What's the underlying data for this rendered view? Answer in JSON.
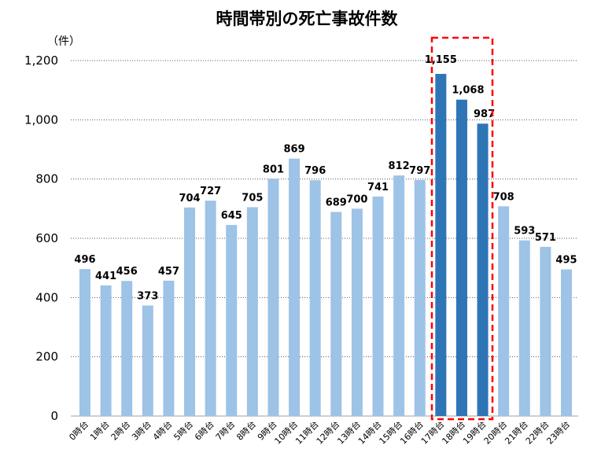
{
  "chart_data": {
    "type": "bar",
    "title": "時間帯別の死亡事故件数",
    "ylabel": "（件）",
    "xlabel": "",
    "ylim": [
      0,
      1200
    ],
    "yticks": [
      0,
      200,
      400,
      600,
      800,
      1000,
      1200
    ],
    "ytick_labels": [
      "0",
      "200",
      "400",
      "600",
      "800",
      "1,000",
      "1,200"
    ],
    "grid": "horizontal dotted",
    "categories": [
      "0時台",
      "1時台",
      "2時台",
      "3時台",
      "4時台",
      "5時台",
      "6時台",
      "7時台",
      "8時台",
      "9時台",
      "10時台",
      "11時台",
      "12時台",
      "13時台",
      "14時台",
      "15時台",
      "16時台",
      "17時台",
      "18時台",
      "19時台",
      "20時台",
      "21時台",
      "22時台",
      "23時台"
    ],
    "values": [
      496,
      441,
      456,
      373,
      457,
      704,
      727,
      645,
      705,
      801,
      869,
      796,
      689,
      700,
      741,
      812,
      797,
      1155,
      1068,
      987,
      708,
      593,
      571,
      495
    ],
    "value_labels": [
      "496",
      "441",
      "456",
      "373",
      "457",
      "704",
      "727",
      "645",
      "705",
      "801",
      "869",
      "796",
      "689",
      "700",
      "741",
      "812",
      "797",
      "1,155",
      "1,068",
      "987",
      "708",
      "593",
      "571",
      "495"
    ],
    "highlighted_categories": [
      "17時台",
      "18時台",
      "19時台"
    ],
    "colors": {
      "normal": "#9dc3e6",
      "highlight": "#2e75b6",
      "highlight_box": "#ff0000",
      "grid": "#555555"
    }
  }
}
